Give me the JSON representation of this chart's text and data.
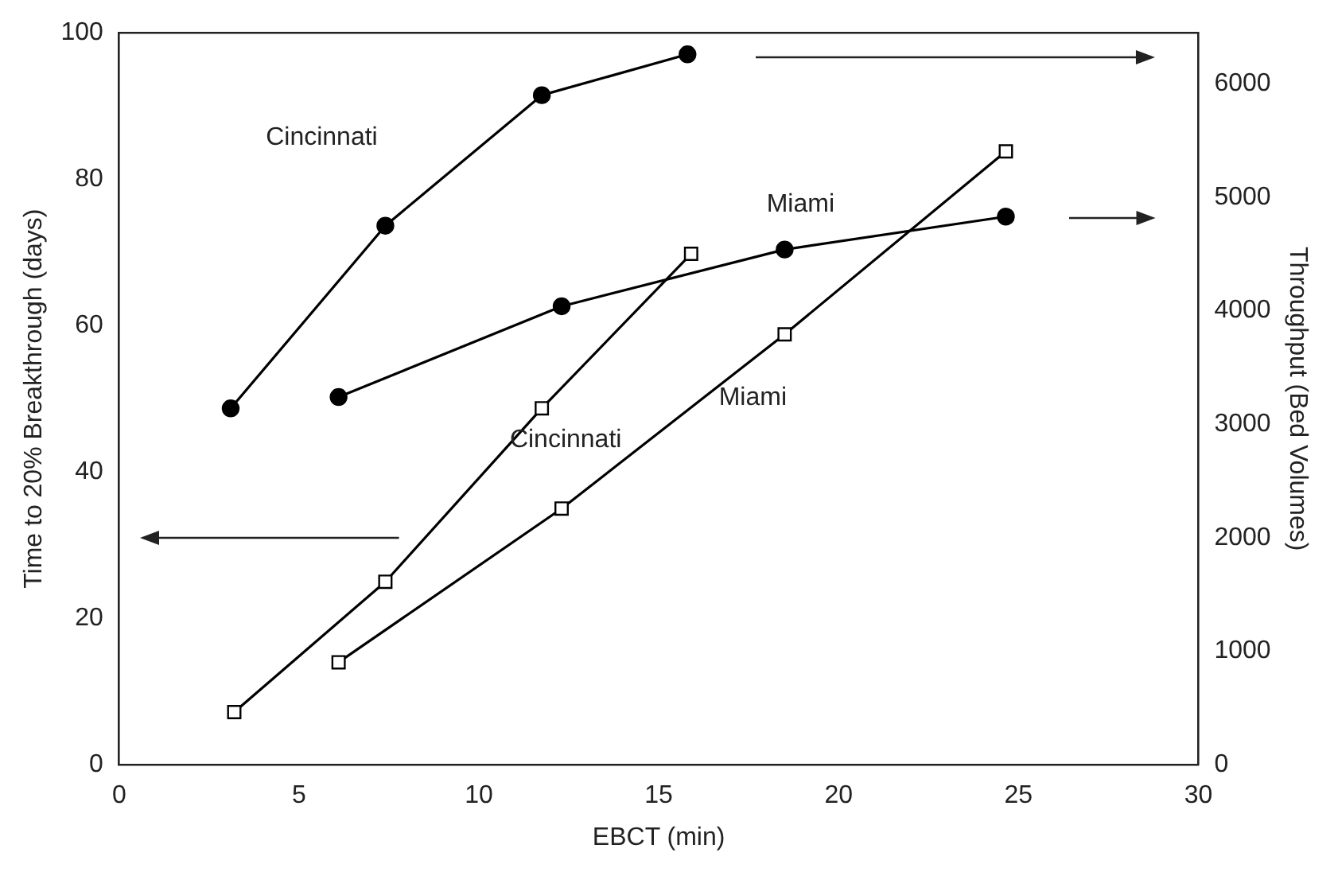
{
  "chart_data": {
    "type": "line",
    "xlabel": "EBCT (min)",
    "ylabel": "Time to 20% Breakthrough (days)",
    "y2label": "Throughput (Bed Volumes)",
    "xlim": [
      0,
      30
    ],
    "xticks": [
      0,
      5,
      10,
      15,
      20,
      25,
      30
    ],
    "ylim": [
      0,
      100
    ],
    "yticks": [
      0,
      20,
      40,
      60,
      80,
      100
    ],
    "y2lim": [
      0,
      6450
    ],
    "y2ticks": [
      0,
      1000,
      2000,
      3000,
      4000,
      5000,
      6000
    ],
    "grid": false,
    "legend": false,
    "line_style": "solid",
    "series": [
      {
        "name": "Cincinnati",
        "color": "#000000",
        "axis": "y2",
        "marker": "circle",
        "x": [
          3.1,
          7.4,
          11.75,
          15.8
        ],
        "values": [
          3140,
          4750,
          5900,
          6260
        ]
      },
      {
        "name": "Miami",
        "color": "#000000",
        "axis": "y2",
        "marker": "circle",
        "x": [
          6.1,
          12.3,
          18.5,
          24.65
        ],
        "values": [
          3240,
          4040,
          4540,
          4830
        ]
      },
      {
        "name": "Cincinnati",
        "color": "#000000",
        "marker": "square",
        "x": [
          3.2,
          7.4,
          11.75,
          15.9
        ],
        "values": [
          7.2,
          25,
          48.7,
          69.8
        ]
      },
      {
        "name": "Miami",
        "color": "#000000",
        "marker": "square",
        "x": [
          6.1,
          12.3,
          18.5,
          24.65
        ],
        "values": [
          14,
          35,
          58.8,
          83.8
        ]
      }
    ]
  }
}
